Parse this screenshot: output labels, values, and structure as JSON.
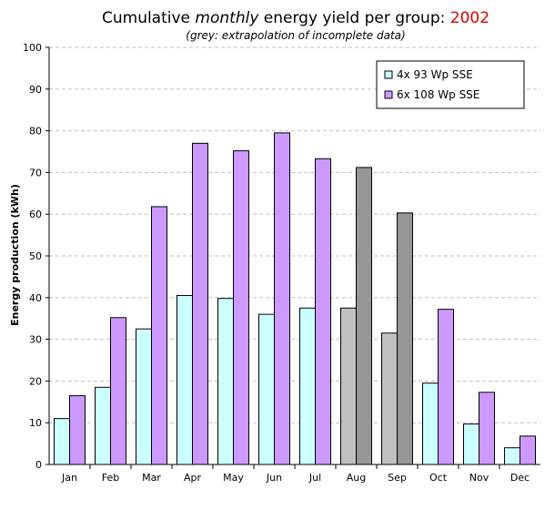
{
  "title": {
    "prefix": "Cumulative ",
    "emphasis": "monthly",
    "middle": " energy yield per group: ",
    "year": "2002"
  },
  "subtitle": "(grey: extrapolation of incomplete data)",
  "colors": {
    "series1": "#ccffff",
    "series2": "#cc99ff",
    "series1_extrapolated": "#c0c0c0",
    "series2_extrapolated": "#969696",
    "year": "#e00000",
    "grid": "#c0c0c0"
  },
  "chart_data": {
    "type": "bar",
    "title": "Cumulative monthly energy yield per group: 2002",
    "subtitle": "(grey: extrapolation of incomplete data)",
    "xlabel": "",
    "ylabel": "Energy production (kWh)",
    "ylim": [
      0,
      100
    ],
    "yticks": [
      0,
      10,
      20,
      30,
      40,
      50,
      60,
      70,
      80,
      90,
      100
    ],
    "grid": "horizontal dashed",
    "legend_position": "top-right",
    "categories": [
      "Jan",
      "Feb",
      "Mar",
      "Apr",
      "May",
      "Jun",
      "Jul",
      "Aug",
      "Sep",
      "Oct",
      "Nov",
      "Dec"
    ],
    "series": [
      {
        "name": "4x 93 Wp SSE",
        "values": [
          11,
          18.5,
          32.5,
          40.5,
          39.8,
          36,
          37.5,
          37.5,
          31.5,
          19.5,
          9.7,
          4
        ]
      },
      {
        "name": "6x 108 Wp SSE",
        "values": [
          16.5,
          35.2,
          61.8,
          77,
          75.2,
          79.5,
          73.3,
          71.2,
          60.3,
          37.2,
          17.3,
          6.8
        ]
      }
    ],
    "extrapolated_categories": [
      "Aug",
      "Sep"
    ]
  }
}
